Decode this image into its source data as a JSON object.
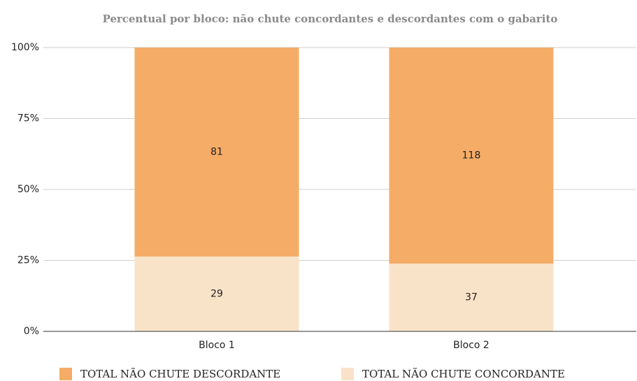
{
  "chart_data": {
    "type": "bar",
    "stack": "percent",
    "title": "Percentual por bloco: não chute concordantes e descordantes com o gabarito",
    "categories": [
      "Bloco 1",
      "Bloco 2"
    ],
    "series": [
      {
        "name": "TOTAL NÃO CHUTE DESCORDANTE",
        "color": "#f4ac67",
        "values": [
          81,
          118
        ]
      },
      {
        "name": "TOTAL NÃO CHUTE CONCORDANTE",
        "color": "#f9e3c8",
        "values": [
          29,
          37
        ]
      }
    ],
    "ylim": [
      0,
      100
    ],
    "yticks": [
      {
        "value": 0,
        "label": "0%"
      },
      {
        "value": 25,
        "label": "25%"
      },
      {
        "value": 50,
        "label": "50%"
      },
      {
        "value": 75,
        "label": "75%"
      },
      {
        "value": 100,
        "label": "100%"
      }
    ],
    "grid": true,
    "legend": "bottom"
  }
}
